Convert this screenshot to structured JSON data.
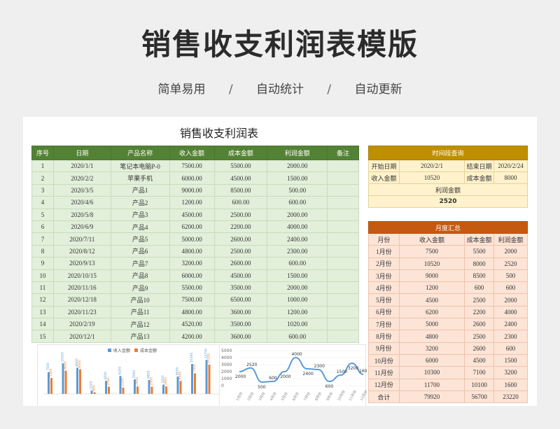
{
  "hero": {
    "title": "销售收支利润表模版",
    "tag1": "简单易用",
    "sep": "/",
    "tag2": "自动统计",
    "tag3": "自动更新"
  },
  "sheet": {
    "title": "销售收支利润表",
    "main_headers": [
      "序号",
      "日期",
      "产品名称",
      "收入金额",
      "成本金额",
      "利润金额",
      "备注"
    ],
    "main_rows": [
      [
        "1",
        "2020/1/1",
        "笔记本电脑P-0",
        "7500.00",
        "5500.00",
        "2000.00",
        ""
      ],
      [
        "2",
        "2020/2/2",
        "苹果手机",
        "6000.00",
        "4500.00",
        "1500.00",
        ""
      ],
      [
        "3",
        "2020/3/5",
        "产品1",
        "9000.00",
        "8500.00",
        "500.00",
        ""
      ],
      [
        "4",
        "2020/4/6",
        "产品2",
        "1200.00",
        "600.00",
        "600.00",
        ""
      ],
      [
        "5",
        "2020/5/8",
        "产品3",
        "4500.00",
        "2500.00",
        "2000.00",
        ""
      ],
      [
        "6",
        "2020/6/9",
        "产品4",
        "6200.00",
        "2200.00",
        "4000.00",
        ""
      ],
      [
        "7",
        "2020/7/11",
        "产品5",
        "5000.00",
        "2600.00",
        "2400.00",
        ""
      ],
      [
        "8",
        "2020/8/12",
        "产品6",
        "4800.00",
        "2500.00",
        "2300.00",
        ""
      ],
      [
        "9",
        "2020/9/13",
        "产品7",
        "3200.00",
        "2600.00",
        "600.00",
        ""
      ],
      [
        "10",
        "2020/10/15",
        "产品8",
        "6000.00",
        "4500.00",
        "1500.00",
        ""
      ],
      [
        "11",
        "2020/11/16",
        "产品9",
        "5500.00",
        "3500.00",
        "2000.00",
        ""
      ],
      [
        "12",
        "2020/12/18",
        "产品10",
        "7500.00",
        "6500.00",
        "1000.00",
        ""
      ],
      [
        "13",
        "2020/11/23",
        "产品11",
        "4800.00",
        "3600.00",
        "1200.00",
        ""
      ],
      [
        "14",
        "2020/2/19",
        "产品12",
        "4520.00",
        "3500.00",
        "1020.00",
        ""
      ],
      [
        "15",
        "2020/12/1",
        "产品13",
        "4200.00",
        "3600.00",
        "600.00",
        ""
      ]
    ],
    "query": {
      "header": "时间段查询",
      "start_label": "开始日期",
      "start_value": "2020/2/1",
      "end_label": "结束日期",
      "end_value": "2020/2/24",
      "income_label": "收入金额",
      "income_value": "10520",
      "cost_label": "成本金额",
      "cost_value": "8000",
      "profit_label": "利润金额",
      "profit_value": "2520"
    },
    "monthly": {
      "header": "月度汇总",
      "col_headers": [
        "月份",
        "收入金额",
        "成本金额",
        "利润金额"
      ],
      "rows": [
        [
          "1月份",
          "7500",
          "5500",
          "2000"
        ],
        [
          "2月份",
          "10520",
          "8000",
          "2520"
        ],
        [
          "3月份",
          "9000",
          "8500",
          "500"
        ],
        [
          "4月份",
          "1200",
          "600",
          "600"
        ],
        [
          "5月份",
          "4500",
          "2500",
          "2000"
        ],
        [
          "6月份",
          "6200",
          "2200",
          "4000"
        ],
        [
          "7月份",
          "5000",
          "2600",
          "2400"
        ],
        [
          "8月份",
          "4800",
          "2500",
          "2300"
        ],
        [
          "9月份",
          "3200",
          "2600",
          "600"
        ],
        [
          "10月份",
          "6000",
          "4500",
          "1500"
        ],
        [
          "11月份",
          "10300",
          "7100",
          "3200"
        ],
        [
          "12月份",
          "11700",
          "10100",
          "1600"
        ],
        [
          "合计",
          "79920",
          "56700",
          "23220"
        ]
      ]
    }
  },
  "colors": {
    "green_header": "#548235",
    "green_cell": "#e2efda",
    "gold_header": "#bf8f00",
    "gold_cell": "#fff2cc",
    "orange_header": "#c65911",
    "orange_cell": "#fce4d6",
    "bar_income": "#5b9bd5",
    "bar_cost": "#ed7d31",
    "line": "#5b9bd5"
  },
  "chart_data": [
    {
      "type": "bar",
      "legend": [
        "收入金额",
        "成本金额"
      ],
      "categories": [
        "1月份",
        "2月份",
        "3月份",
        "4月份",
        "5月份",
        "6月份",
        "7月份",
        "8月份",
        "9月份",
        "10月份",
        "11月份",
        "12月份"
      ],
      "series": [
        {
          "name": "收入金额",
          "values": [
            7500,
            10520,
            9000,
            1200,
            4500,
            6200,
            5000,
            4800,
            3200,
            6000,
            10300,
            11700
          ]
        },
        {
          "name": "成本金额",
          "values": [
            5500,
            8000,
            8500,
            600,
            2500,
            2200,
            2600,
            2500,
            2600,
            4500,
            7100,
            10100
          ]
        }
      ]
    },
    {
      "type": "line",
      "yticks": [
        "5000",
        "4000",
        "3000",
        "2000",
        "1000",
        "0"
      ],
      "ylim": [
        0,
        5000
      ],
      "categories": [
        "1月份",
        "2月份",
        "3月份",
        "4月份",
        "5月份",
        "6月份",
        "7月份",
        "8月份",
        "9月份",
        "10月份",
        "11月份",
        "12月份"
      ],
      "xtick_text": "月份",
      "series": [
        {
          "values": [
            2000,
            2520,
            500,
            600,
            2000,
            4000,
            2400,
            2300,
            600,
            1500,
            3200,
            1600
          ]
        }
      ]
    }
  ]
}
